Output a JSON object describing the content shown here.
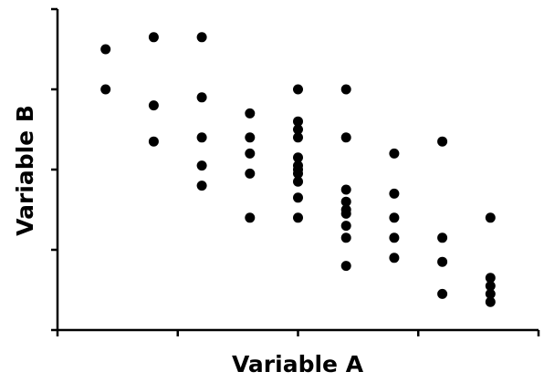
{
  "chart_data": {
    "type": "scatter",
    "title": "",
    "xlabel": "Variable A",
    "ylabel": "Variable B",
    "xlim": [
      0,
      10
    ],
    "ylim": [
      0,
      8
    ],
    "x_ticks": [
      0,
      2.5,
      5,
      7.5,
      10
    ],
    "y_ticks": [
      0,
      2,
      4,
      6,
      8
    ],
    "tick_labels_shown": false,
    "grid": false,
    "legend": "none",
    "marker_color": "#000000",
    "series": [
      {
        "points": [
          [
            1.0,
            7.0
          ],
          [
            1.0,
            6.0
          ],
          [
            2.0,
            7.3
          ],
          [
            2.0,
            5.6
          ],
          [
            2.0,
            4.7
          ],
          [
            3.0,
            7.3
          ],
          [
            3.0,
            5.8
          ],
          [
            3.0,
            4.8
          ],
          [
            3.0,
            4.1
          ],
          [
            3.0,
            3.6
          ],
          [
            4.0,
            5.4
          ],
          [
            4.0,
            4.8
          ],
          [
            4.0,
            4.4
          ],
          [
            4.0,
            3.9
          ],
          [
            4.0,
            2.8
          ],
          [
            5.0,
            6.0
          ],
          [
            5.0,
            5.2
          ],
          [
            5.0,
            5.0
          ],
          [
            5.0,
            4.8
          ],
          [
            5.0,
            4.3
          ],
          [
            5.0,
            4.1
          ],
          [
            5.0,
            4.0
          ],
          [
            5.0,
            3.9
          ],
          [
            5.0,
            3.7
          ],
          [
            5.0,
            3.3
          ],
          [
            5.0,
            2.8
          ],
          [
            6.0,
            6.0
          ],
          [
            6.0,
            4.8
          ],
          [
            6.0,
            3.5
          ],
          [
            6.0,
            3.2
          ],
          [
            6.0,
            3.0
          ],
          [
            6.0,
            2.9
          ],
          [
            6.0,
            2.6
          ],
          [
            6.0,
            2.3
          ],
          [
            6.0,
            1.6
          ],
          [
            7.0,
            4.4
          ],
          [
            7.0,
            3.4
          ],
          [
            7.0,
            2.8
          ],
          [
            7.0,
            2.3
          ],
          [
            7.0,
            1.8
          ],
          [
            8.0,
            4.7
          ],
          [
            8.0,
            2.3
          ],
          [
            8.0,
            1.7
          ],
          [
            8.0,
            0.9
          ],
          [
            9.0,
            2.8
          ],
          [
            9.0,
            1.3
          ],
          [
            9.0,
            1.1
          ],
          [
            9.0,
            0.9
          ],
          [
            9.0,
            0.7
          ]
        ]
      }
    ]
  }
}
